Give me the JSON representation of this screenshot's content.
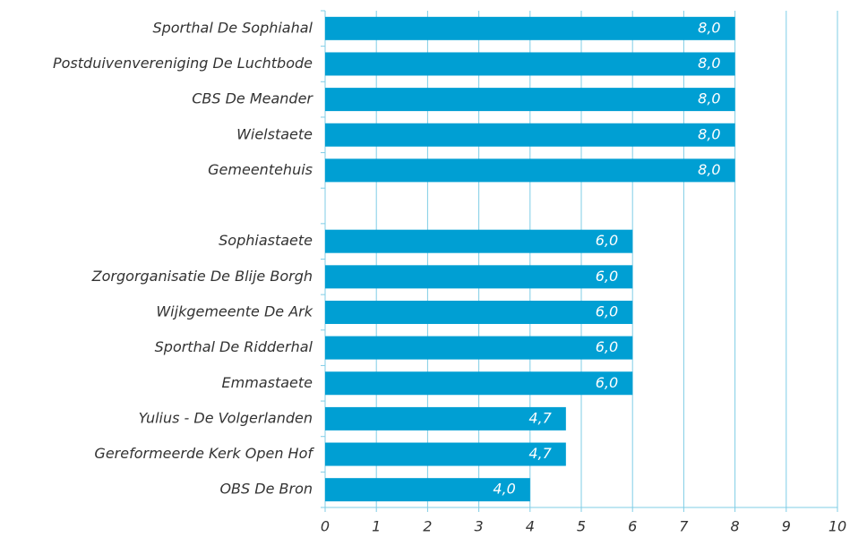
{
  "chart_data": {
    "type": "hbar",
    "categories": [
      "Sporthal De Sophiahal",
      "Postduivenvereniging De Luchtbode",
      "CBS De Meander",
      "Wielstaete",
      "Gemeentehuis",
      null,
      "Sophiastaete",
      "Zorgorganisatie De Blije Borgh",
      "Wijkgemeente De Ark",
      "Sporthal De Ridderhal",
      "Emmastaete",
      "Yulius - De Volgerlanden",
      "Gereformeerde Kerk Open Hof",
      "OBS De Bron"
    ],
    "values": [
      8,
      8,
      8,
      8,
      8,
      null,
      6,
      6,
      6,
      6,
      6,
      4.7,
      4.7,
      4
    ],
    "value_labels": [
      "8,0",
      "8,0",
      "8,0",
      "8,0",
      "8,0",
      null,
      "6,0",
      "6,0",
      "6,0",
      "6,0",
      "6,0",
      "4,7",
      "4,7",
      "4,0"
    ],
    "color": "#009fd3",
    "xlim": [
      0,
      10
    ],
    "xticks": [
      0,
      1,
      2,
      3,
      4,
      5,
      6,
      7,
      8,
      9,
      10
    ],
    "grid": true
  }
}
